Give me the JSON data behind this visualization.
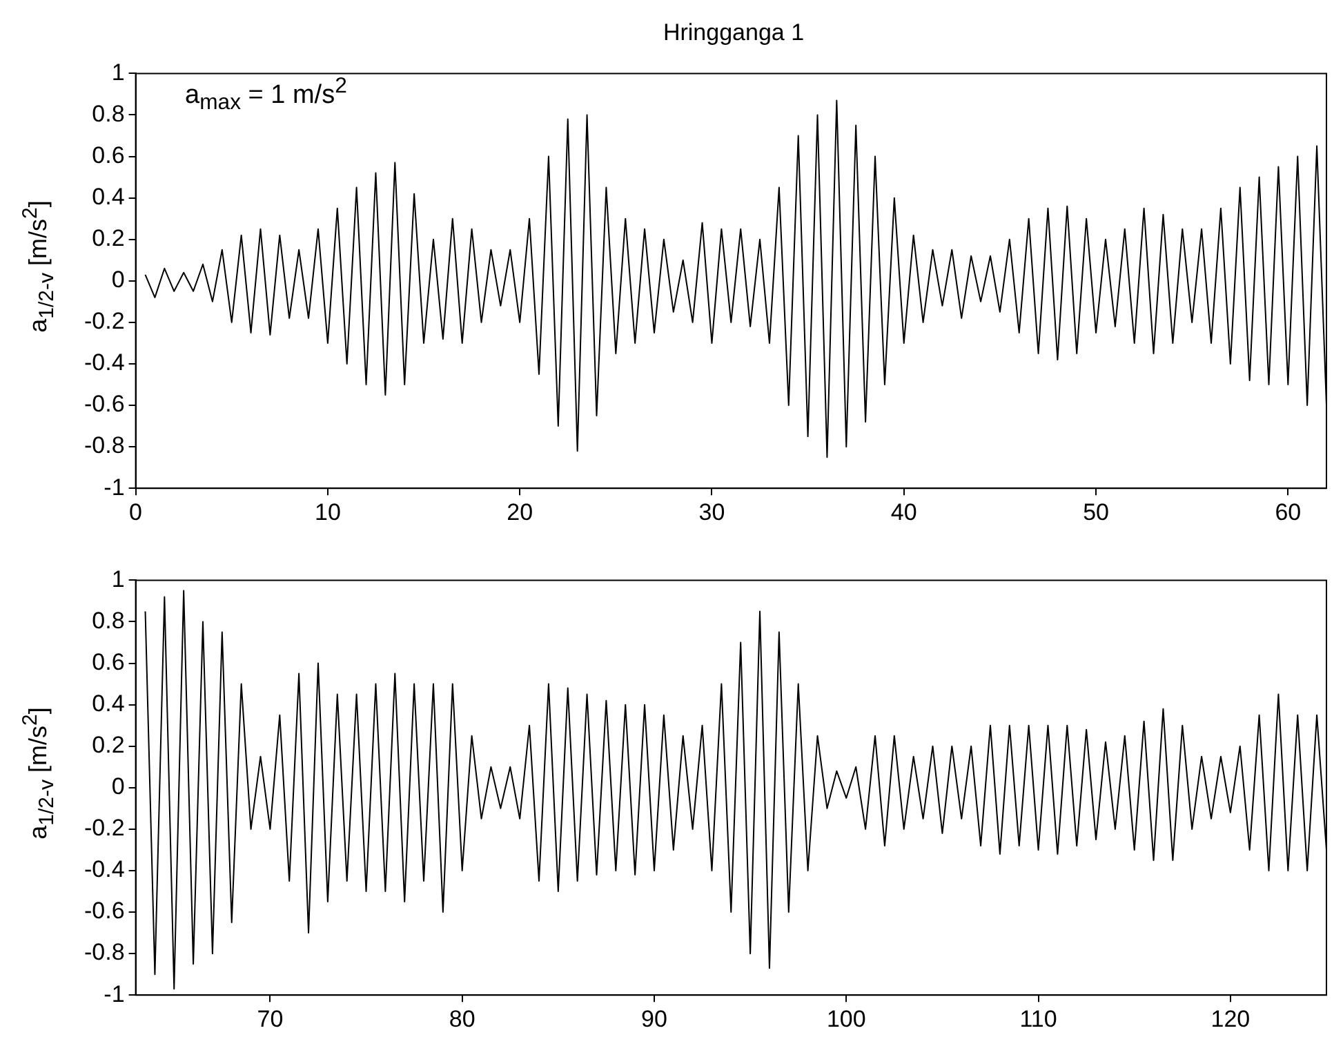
{
  "chart_data": [
    {
      "type": "line",
      "title": "Hringganga 1",
      "ylabel": "a$_{1/2-v}$ [m/s$^{2}$]",
      "annotations": [
        "a$_{max}$ = 1 m/s$^{2}$"
      ],
      "color": "#000000",
      "grid": false,
      "xlim": [
        0,
        62
      ],
      "xticks": [
        0,
        10,
        20,
        30,
        40,
        50,
        60
      ],
      "ylim": [
        -1,
        1
      ],
      "yticks": [
        -1,
        -0.8,
        -0.6,
        -0.4,
        -0.2,
        0,
        0.2,
        0.4,
        0.6,
        0.8,
        1
      ],
      "x": [
        0.5,
        1,
        1.5,
        2,
        2.5,
        3,
        3.5,
        4,
        4.5,
        5,
        5.5,
        6,
        6.5,
        7,
        7.5,
        8,
        8.5,
        9,
        9.5,
        10,
        10.5,
        11,
        11.5,
        12,
        12.5,
        13,
        13.5,
        14,
        14.5,
        15,
        15.5,
        16,
        16.5,
        17,
        17.5,
        18,
        18.5,
        19,
        19.5,
        20,
        20.5,
        21,
        21.5,
        22,
        22.5,
        23,
        23.5,
        24,
        24.5,
        25,
        25.5,
        26,
        26.5,
        27,
        27.5,
        28,
        28.5,
        29,
        29.5,
        30,
        30.5,
        31,
        31.5,
        32,
        32.5,
        33,
        33.5,
        34,
        34.5,
        35,
        35.5,
        36,
        36.5,
        37,
        37.5,
        38,
        38.5,
        39,
        39.5,
        40,
        40.5,
        41,
        41.5,
        42,
        42.5,
        43,
        43.5,
        44,
        44.5,
        45,
        45.5,
        46,
        46.5,
        47,
        47.5,
        48,
        48.5,
        49,
        49.5,
        50,
        50.5,
        51,
        51.5,
        52,
        52.5,
        53,
        53.5,
        54,
        54.5,
        55,
        55.5,
        56,
        56.5,
        57,
        57.5,
        58,
        58.5,
        59,
        59.5,
        60,
        60.5,
        61,
        61.5,
        62
      ],
      "values": [
        0.03,
        -0.08,
        0.06,
        -0.05,
        0.04,
        -0.05,
        0.08,
        -0.1,
        0.15,
        -0.2,
        0.22,
        -0.25,
        0.25,
        -0.26,
        0.22,
        -0.18,
        0.15,
        -0.18,
        0.25,
        -0.3,
        0.35,
        -0.4,
        0.45,
        -0.5,
        0.52,
        -0.55,
        0.57,
        -0.5,
        0.42,
        -0.3,
        0.2,
        -0.28,
        0.3,
        -0.3,
        0.25,
        -0.2,
        0.15,
        -0.12,
        0.15,
        -0.2,
        0.3,
        -0.45,
        0.6,
        -0.7,
        0.78,
        -0.82,
        0.8,
        -0.65,
        0.45,
        -0.35,
        0.3,
        -0.3,
        0.25,
        -0.25,
        0.2,
        -0.15,
        0.1,
        -0.2,
        0.28,
        -0.3,
        0.25,
        -0.2,
        0.25,
        -0.22,
        0.2,
        -0.3,
        0.45,
        -0.6,
        0.7,
        -0.75,
        0.8,
        -0.85,
        0.87,
        -0.8,
        0.75,
        -0.68,
        0.6,
        -0.5,
        0.4,
        -0.3,
        0.22,
        -0.2,
        0.15,
        -0.12,
        0.15,
        -0.18,
        0.12,
        -0.1,
        0.12,
        -0.15,
        0.2,
        -0.25,
        0.3,
        -0.35,
        0.35,
        -0.38,
        0.36,
        -0.35,
        0.3,
        -0.25,
        0.2,
        -0.22,
        0.25,
        -0.3,
        0.35,
        -0.35,
        0.32,
        -0.3,
        0.25,
        -0.2,
        0.25,
        -0.3,
        0.35,
        -0.4,
        0.45,
        -0.48,
        0.5,
        -0.5,
        0.55,
        -0.5,
        0.6,
        -0.6,
        0.65,
        -0.6
      ]
    },
    {
      "type": "line",
      "ylabel": "a$_{1/2-v}$ [m/s$^{2}$]",
      "color": "#000000",
      "grid": false,
      "xlim": [
        63,
        125
      ],
      "xticks": [
        70,
        80,
        90,
        100,
        110,
        120
      ],
      "ylim": [
        -1,
        1
      ],
      "yticks": [
        -1,
        -0.8,
        -0.6,
        -0.4,
        -0.2,
        0,
        0.2,
        0.4,
        0.6,
        0.8,
        1
      ],
      "x": [
        63.5,
        64,
        64.5,
        65,
        65.5,
        66,
        66.5,
        67,
        67.5,
        68,
        68.5,
        69,
        69.5,
        70,
        70.5,
        71,
        71.5,
        72,
        72.5,
        73,
        73.5,
        74,
        74.5,
        75,
        75.5,
        76,
        76.5,
        77,
        77.5,
        78,
        78.5,
        79,
        79.5,
        80,
        80.5,
        81,
        81.5,
        82,
        82.5,
        83,
        83.5,
        84,
        84.5,
        85,
        85.5,
        86,
        86.5,
        87,
        87.5,
        88,
        88.5,
        89,
        89.5,
        90,
        90.5,
        91,
        91.5,
        92,
        92.5,
        93,
        93.5,
        94,
        94.5,
        95,
        95.5,
        96,
        96.5,
        97,
        97.5,
        98,
        98.5,
        99,
        99.5,
        100,
        100.5,
        101,
        101.5,
        102,
        102.5,
        103,
        103.5,
        104,
        104.5,
        105,
        105.5,
        106,
        106.5,
        107,
        107.5,
        108,
        108.5,
        109,
        109.5,
        110,
        110.5,
        111,
        111.5,
        112,
        112.5,
        113,
        113.5,
        114,
        114.5,
        115,
        115.5,
        116,
        116.5,
        117,
        117.5,
        118,
        118.5,
        119,
        119.5,
        120,
        120.5,
        121,
        121.5,
        122,
        122.5,
        123,
        123.5,
        124,
        124.5,
        125
      ],
      "values": [
        0.85,
        -0.9,
        0.92,
        -0.97,
        0.95,
        -0.85,
        0.8,
        -0.8,
        0.75,
        -0.65,
        0.5,
        -0.2,
        0.15,
        -0.2,
        0.35,
        -0.45,
        0.55,
        -0.7,
        0.6,
        -0.55,
        0.45,
        -0.45,
        0.45,
        -0.5,
        0.5,
        -0.5,
        0.55,
        -0.55,
        0.5,
        -0.45,
        0.5,
        -0.6,
        0.5,
        -0.4,
        0.25,
        -0.15,
        0.1,
        -0.1,
        0.1,
        -0.15,
        0.3,
        -0.45,
        0.5,
        -0.5,
        0.48,
        -0.45,
        0.45,
        -0.42,
        0.42,
        -0.4,
        0.4,
        -0.42,
        0.4,
        -0.4,
        0.35,
        -0.3,
        0.25,
        -0.2,
        0.3,
        -0.4,
        0.5,
        -0.6,
        0.7,
        -0.8,
        0.85,
        -0.87,
        0.75,
        -0.6,
        0.5,
        -0.4,
        0.25,
        -0.1,
        0.08,
        -0.05,
        0.1,
        -0.2,
        0.25,
        -0.28,
        0.25,
        -0.2,
        0.15,
        -0.15,
        0.2,
        -0.22,
        0.2,
        -0.15,
        0.2,
        -0.28,
        0.3,
        -0.32,
        0.3,
        -0.28,
        0.3,
        -0.3,
        0.3,
        -0.32,
        0.3,
        -0.28,
        0.28,
        -0.25,
        0.22,
        -0.2,
        0.25,
        -0.3,
        0.32,
        -0.35,
        0.38,
        -0.35,
        0.3,
        -0.2,
        0.15,
        -0.15,
        0.15,
        -0.12,
        0.2,
        -0.3,
        0.35,
        -0.4,
        0.45,
        -0.4,
        0.35,
        -0.4,
        0.35,
        -0.3
      ]
    }
  ]
}
